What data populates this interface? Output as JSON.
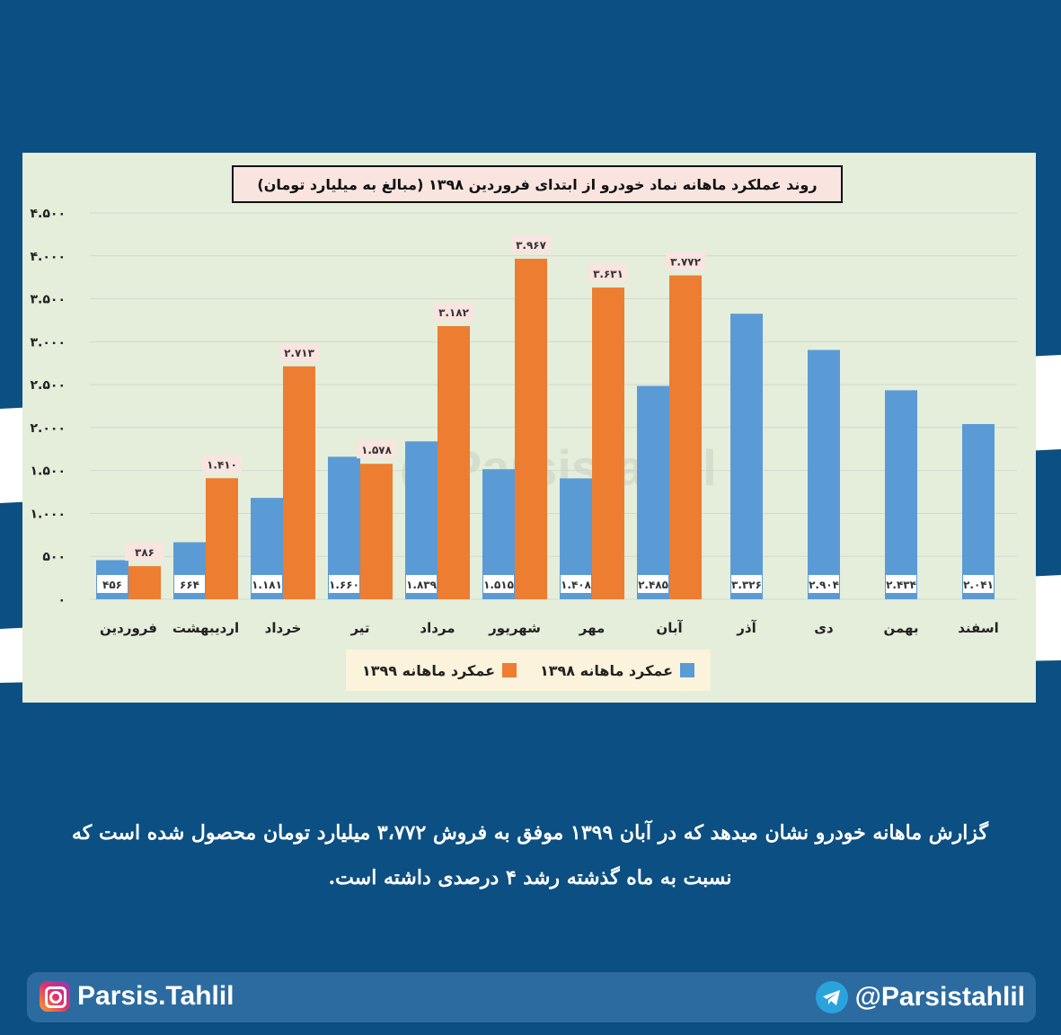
{
  "chart_data": {
    "type": "bar",
    "title": "روند عملکرد ماهانه نماد خودرو از ابتدای فروردین ۱۳۹۸ (مبالغ به میلیارد تومان)",
    "categories": [
      "فروردین",
      "اردیبهشت",
      "خرداد",
      "تیر",
      "مرداد",
      "شهریور",
      "مهر",
      "آبان",
      "آذر",
      "دی",
      "بهمن",
      "اسفند"
    ],
    "series": [
      {
        "name": "عمکرد ماهانه ۱۳۹۸",
        "color": "#5b9bd5",
        "values": [
          456,
          664,
          1181,
          1660,
          1839,
          1515,
          1408,
          2485,
          3326,
          2904,
          2434,
          2041
        ],
        "labels": [
          "۴۵۶",
          "۶۶۴",
          "۱.۱۸۱",
          "۱.۶۶۰",
          "۱.۸۳۹",
          "۱.۵۱۵",
          "۱.۴۰۸",
          "۲.۴۸۵",
          "۳.۳۲۶",
          "۲.۹۰۴",
          "۲.۴۳۴",
          "۲.۰۴۱"
        ]
      },
      {
        "name": "عمکرد ماهانه ۱۳۹۹",
        "color": "#ed7d31",
        "values": [
          386,
          1410,
          2713,
          1578,
          3182,
          3967,
          3631,
          3772,
          null,
          null,
          null,
          null
        ],
        "labels": [
          "۳۸۶",
          "۱.۴۱۰",
          "۲.۷۱۳",
          "۱.۵۷۸",
          "۳.۱۸۲",
          "۳.۹۶۷",
          "۳.۶۳۱",
          "۳.۷۷۲",
          "",
          "",
          "",
          ""
        ]
      }
    ],
    "ylim": [
      0,
      4500
    ],
    "yticks": [
      0,
      500,
      1000,
      1500,
      2000,
      2500,
      3000,
      3500,
      4000,
      4500
    ],
    "ytick_labels": [
      "۰",
      "۵۰۰",
      "۱.۰۰۰",
      "۱.۵۰۰",
      "۲.۰۰۰",
      "۲.۵۰۰",
      "۳.۰۰۰",
      "۳.۵۰۰",
      "۴.۰۰۰",
      "۴.۵۰۰"
    ],
    "grid": true,
    "legend": "bottom",
    "watermark": "@Parsistahlil"
  },
  "caption": {
    "line1": "گزارش ماهانه خودرو نشان میدهد که در آبان ۱۳۹۹ موفق به فروش ۳،۷۷۲ میلیارد تومان محصول شده است که",
    "line2": "نسبت به ماه گذشته رشد ۴ درصدی داشته است."
  },
  "footer": {
    "instagram": "Parsis.Tahlil",
    "telegram": "@Parsistahlil",
    "instagram_icon": "instagram-icon",
    "telegram_icon": "telegram-icon"
  },
  "colors": {
    "background": "#0c4f82",
    "panel": "#e4eedb",
    "series_1398": "#5b9bd5",
    "series_1399": "#ed7d31"
  }
}
